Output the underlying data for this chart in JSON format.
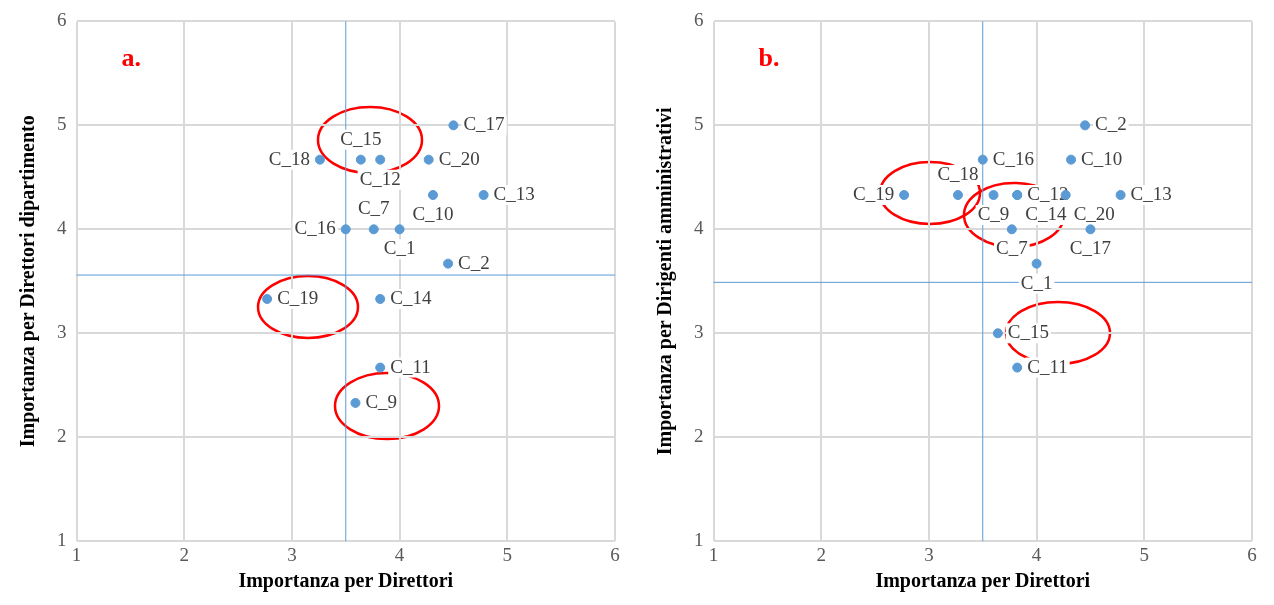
{
  "chart_data": [
    {
      "type": "scatter",
      "title": "a.",
      "xlabel": "Importanza per Direttori",
      "ylabel": "Importanza per Direttori dipartimento",
      "color": "#5b9bd5",
      "marker": "circle",
      "grid": true,
      "x": [
        4.5,
        3.64,
        3.82,
        3.26,
        4.27,
        4.31,
        4.78,
        3.5,
        3.76,
        4.0,
        4.45,
        2.77,
        3.82,
        3.82,
        3.59
      ],
      "values": [
        5.0,
        4.67,
        4.67,
        4.67,
        4.67,
        4.33,
        4.33,
        4.0,
        4.0,
        4.0,
        3.67,
        3.33,
        3.33,
        2.67,
        2.33
      ],
      "xlim": [
        1,
        6
      ],
      "ylim": [
        1,
        6
      ],
      "xticks": [
        1,
        2,
        3,
        4,
        5,
        6
      ],
      "yticks": [
        1,
        2,
        3,
        4,
        5,
        6
      ],
      "ref_lines": [
        {
          "axis": "x",
          "value": 3.5,
          "color": "#5b9bd5"
        },
        {
          "axis": "y",
          "value": 3.56,
          "color": "#5b9bd5"
        }
      ],
      "annotations": [
        {
          "text": "C_17",
          "x": 4.5,
          "y": 5.0
        },
        {
          "text": "C_15",
          "x": 3.64,
          "y": 4.67
        },
        {
          "text": "C_12",
          "x": 3.82,
          "y": 4.67
        },
        {
          "text": "C_18",
          "x": 3.26,
          "y": 4.67
        },
        {
          "text": "C_20",
          "x": 4.27,
          "y": 4.67
        },
        {
          "text": "C_10",
          "x": 4.31,
          "y": 4.33
        },
        {
          "text": "C_13",
          "x": 4.78,
          "y": 4.33
        },
        {
          "text": "C_16",
          "x": 3.5,
          "y": 4.0
        },
        {
          "text": "C_7",
          "x": 3.76,
          "y": 4.0
        },
        {
          "text": "C_1",
          "x": 4.0,
          "y": 4.0
        },
        {
          "text": "C_2",
          "x": 4.45,
          "y": 3.67
        },
        {
          "text": "C_19",
          "x": 2.77,
          "y": 3.33
        },
        {
          "text": "C_14",
          "x": 3.82,
          "y": 3.33
        },
        {
          "text": "C_11",
          "x": 3.82,
          "y": 2.67
        },
        {
          "text": "C_9",
          "x": 3.59,
          "y": 2.33
        }
      ]
    },
    {
      "type": "scatter",
      "title": "b.",
      "xlabel": "Importanza per Direttori",
      "ylabel": "Importanza per Dirigenti amministrativi",
      "color": "#5b9bd5",
      "marker": "circle",
      "grid": true,
      "x": [
        4.45,
        3.5,
        4.32,
        3.27,
        2.77,
        3.6,
        3.82,
        3.82,
        4.27,
        4.78,
        3.77,
        4.5,
        4.0,
        3.64,
        3.82
      ],
      "values": [
        5.0,
        4.67,
        4.67,
        4.33,
        4.33,
        4.33,
        4.33,
        4.33,
        4.33,
        4.33,
        4.0,
        4.0,
        3.67,
        3.0,
        2.67
      ],
      "xlim": [
        1,
        6
      ],
      "ylim": [
        1,
        6
      ],
      "xticks": [
        1,
        2,
        3,
        4,
        5,
        6
      ],
      "yticks": [
        1,
        2,
        3,
        4,
        5,
        6
      ],
      "ref_lines": [
        {
          "axis": "x",
          "value": 3.5,
          "color": "#5b9bd5"
        },
        {
          "axis": "y",
          "value": 3.49,
          "color": "#5b9bd5"
        }
      ],
      "annotations": [
        {
          "text": "C_2",
          "x": 4.45,
          "y": 5.0
        },
        {
          "text": "C_16",
          "x": 3.5,
          "y": 4.67
        },
        {
          "text": "C_10",
          "x": 4.32,
          "y": 4.67
        },
        {
          "text": "C_18",
          "x": 3.27,
          "y": 4.33
        },
        {
          "text": "C_19",
          "x": 2.77,
          "y": 4.33
        },
        {
          "text": "C_9",
          "x": 3.6,
          "y": 4.33
        },
        {
          "text": "C_14",
          "x": 3.82,
          "y": 4.33
        },
        {
          "text": "C_12",
          "x": 3.82,
          "y": 4.33
        },
        {
          "text": "C_20",
          "x": 4.27,
          "y": 4.33
        },
        {
          "text": "C_13",
          "x": 4.78,
          "y": 4.33
        },
        {
          "text": "C_7",
          "x": 3.77,
          "y": 4.0
        },
        {
          "text": "C_17",
          "x": 4.5,
          "y": 4.0
        },
        {
          "text": "C_1",
          "x": 4.0,
          "y": 3.67
        },
        {
          "text": "C_15",
          "x": 3.64,
          "y": 3.0
        },
        {
          "text": "C_11",
          "x": 3.82,
          "y": 2.67
        }
      ]
    }
  ]
}
